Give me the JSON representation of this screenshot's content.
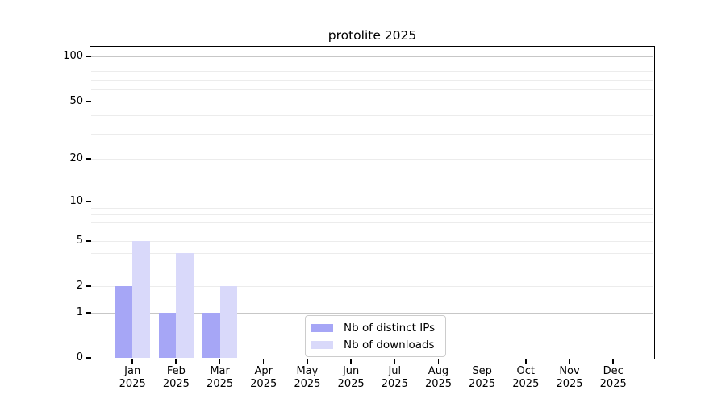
{
  "chart_data": {
    "type": "bar",
    "title": "protolite 2025",
    "xlabel": "",
    "ylabel": "",
    "categories": [
      "Jan",
      "Feb",
      "Mar",
      "Apr",
      "May",
      "Jun",
      "Jul",
      "Aug",
      "Sep",
      "Oct",
      "Nov",
      "Dec"
    ],
    "year_label": "2025",
    "series": [
      {
        "name": "Nb of distinct IPs",
        "color": "#a6a6f6",
        "values": [
          2,
          1,
          1,
          0,
          0,
          0,
          0,
          0,
          0,
          0,
          0,
          0
        ]
      },
      {
        "name": "Nb of downloads",
        "color": "#d9d9fa",
        "values": [
          5,
          4,
          2,
          0,
          0,
          0,
          0,
          0,
          0,
          0,
          0,
          0
        ]
      }
    ],
    "y_axis": {
      "scale": "log1p",
      "major_ticks": [
        0,
        1,
        2,
        5,
        10,
        20,
        50,
        100
      ],
      "decade_lines": [
        1,
        10,
        100
      ],
      "minor_lines": [
        2,
        3,
        4,
        5,
        6,
        7,
        8,
        9,
        20,
        30,
        40,
        50,
        60,
        70,
        80,
        90
      ],
      "ylim": [
        0,
        115
      ]
    },
    "legend": {
      "position": "lower-center",
      "entries": [
        "Nb of distinct IPs",
        "Nb of downloads"
      ]
    },
    "grid": true,
    "colors": {
      "major_grid": "#c7c7c7",
      "minor_grid": "#ececec",
      "axis": "#000000",
      "background": "#ffffff"
    }
  }
}
